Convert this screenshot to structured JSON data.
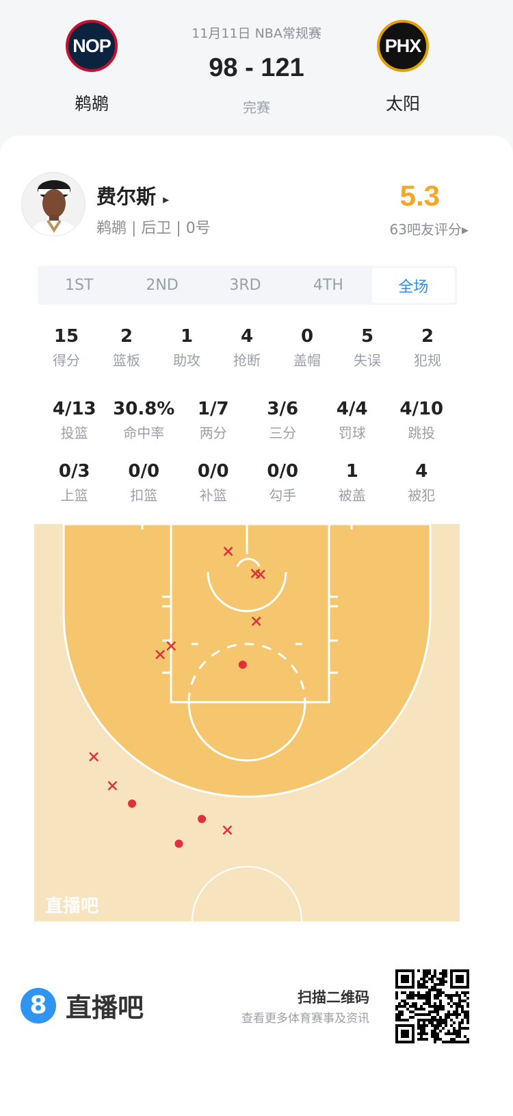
{
  "header": {
    "date_league": "11月11日 NBA常规赛",
    "score": "98 - 121",
    "status": "完赛",
    "home": {
      "abbr": "NOP",
      "name": "鹈鹕",
      "colors": {
        "outer": "#c8102e",
        "inner": "#0c2340",
        "text": "#fff"
      }
    },
    "away": {
      "abbr": "PHX",
      "name": "太阳",
      "colors": {
        "outer": "#e5a000",
        "inner": "#111111",
        "text": "#fff"
      }
    }
  },
  "player": {
    "name": "费尔斯",
    "arrow": "▸",
    "info": "鹈鹕 | 后卫 | 0号",
    "rating": "5.3",
    "rating_label": "63吧友评分▸",
    "rating_color": "#f5a623"
  },
  "tabs": [
    {
      "label": "1ST",
      "active": false
    },
    {
      "label": "2ND",
      "active": false
    },
    {
      "label": "3RD",
      "active": false
    },
    {
      "label": "4TH",
      "active": false
    },
    {
      "label": "全场",
      "active": true
    }
  ],
  "stats_row1": [
    {
      "value": "15",
      "label": "得分"
    },
    {
      "value": "2",
      "label": "篮板"
    },
    {
      "value": "1",
      "label": "助攻"
    },
    {
      "value": "4",
      "label": "抢断"
    },
    {
      "value": "0",
      "label": "盖帽"
    },
    {
      "value": "5",
      "label": "失误"
    },
    {
      "value": "2",
      "label": "犯规"
    }
  ],
  "stats_row2": [
    {
      "value": "4/13",
      "label": "投篮"
    },
    {
      "value": "30.8%",
      "label": "命中率"
    },
    {
      "value": "1/7",
      "label": "两分"
    },
    {
      "value": "3/6",
      "label": "三分"
    },
    {
      "value": "4/4",
      "label": "罚球"
    },
    {
      "value": "4/10",
      "label": "跳投"
    }
  ],
  "stats_row3": [
    {
      "value": "0/3",
      "label": "上篮"
    },
    {
      "value": "0/0",
      "label": "扣篮"
    },
    {
      "value": "0/0",
      "label": "补篮"
    },
    {
      "value": "0/0",
      "label": "勾手"
    },
    {
      "value": "1",
      "label": "被盖"
    },
    {
      "value": "4",
      "label": "被犯"
    }
  ],
  "shot_chart": {
    "units": "feet from baseline; x from court center",
    "colors": {
      "paint": "#f5c66d",
      "outside": "#f8e3bf",
      "marker": "#e0303a"
    },
    "watermark": "直播吧",
    "shots": [
      {
        "x": -2.2,
        "y": 3.2,
        "made": false
      },
      {
        "x": 1.0,
        "y": 5.8,
        "made": false
      },
      {
        "x": 1.6,
        "y": 5.9,
        "made": false
      },
      {
        "x": 1.1,
        "y": 11.4,
        "made": false
      },
      {
        "x": -8.9,
        "y": 14.3,
        "made": false
      },
      {
        "x": -10.2,
        "y": 15.3,
        "made": false
      },
      {
        "x": -0.5,
        "y": 16.5,
        "made": true
      },
      {
        "x": -18.0,
        "y": 27.3,
        "made": false
      },
      {
        "x": -15.8,
        "y": 30.7,
        "made": false
      },
      {
        "x": -13.5,
        "y": 32.8,
        "made": true
      },
      {
        "x": -5.3,
        "y": 34.6,
        "made": true
      },
      {
        "x": -2.3,
        "y": 35.9,
        "made": false
      },
      {
        "x": -8.0,
        "y": 37.5,
        "made": true
      }
    ]
  },
  "footer": {
    "brand_icon": "8",
    "brand": "直播吧",
    "qr_title": "扫描二维码",
    "qr_sub": "查看更多体育赛事及资讯",
    "brand_color": "#2f95f0"
  }
}
